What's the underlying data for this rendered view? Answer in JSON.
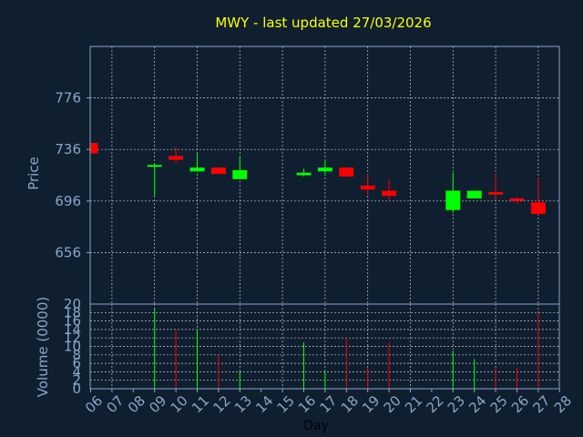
{
  "chart_data": {
    "type": "candlestick",
    "title": "MWY - last updated 27/03/2026",
    "xlabel": "Day",
    "price_panel": {
      "ylabel": "Price",
      "ylim": [
        616,
        816
      ],
      "ticks": [
        656,
        696,
        736,
        776
      ]
    },
    "volume_panel": {
      "ylabel": "Volume (0000)",
      "ylim": [
        0,
        20
      ],
      "ticks": [
        0,
        2,
        4,
        6,
        8,
        10,
        12,
        14,
        16,
        18,
        20
      ]
    },
    "x_tick_labels": [
      "06",
      "07",
      "08",
      "09",
      "10",
      "11",
      "12",
      "13",
      "14",
      "15",
      "16",
      "17",
      "18",
      "19",
      "20",
      "21",
      "22",
      "23",
      "24",
      "25",
      "26",
      "27",
      "28"
    ],
    "candles": [
      {
        "day": "06",
        "open": 741,
        "close": 733,
        "high": 741,
        "low": 733,
        "volume": 0,
        "direction": "down"
      },
      {
        "day": "09",
        "open": 723,
        "close": 724,
        "high": 725,
        "low": 700,
        "volume": 19,
        "direction": "up"
      },
      {
        "day": "10",
        "open": 731,
        "close": 728,
        "high": 738,
        "low": 726,
        "volume": 14,
        "direction": "down"
      },
      {
        "day": "11",
        "open": 719,
        "close": 722,
        "high": 733,
        "low": 719,
        "volume": 14,
        "direction": "up"
      },
      {
        "day": "12",
        "open": 722,
        "close": 717,
        "high": 722,
        "low": 717,
        "volume": 8,
        "direction": "down"
      },
      {
        "day": "13",
        "open": 713,
        "close": 720,
        "high": 730,
        "low": 713,
        "volume": 4,
        "direction": "up"
      },
      {
        "day": "16",
        "open": 716,
        "close": 718,
        "high": 721,
        "low": 715,
        "volume": 11,
        "direction": "up"
      },
      {
        "day": "17",
        "open": 719,
        "close": 722,
        "high": 728,
        "low": 717,
        "volume": 4,
        "direction": "up"
      },
      {
        "day": "18",
        "open": 722,
        "close": 715,
        "high": 722,
        "low": 715,
        "volume": 12,
        "direction": "down"
      },
      {
        "day": "19",
        "open": 708,
        "close": 705,
        "high": 717,
        "low": 701,
        "volume": 5,
        "direction": "down"
      },
      {
        "day": "20",
        "open": 704,
        "close": 700,
        "high": 713,
        "low": 697,
        "volume": 11,
        "direction": "down"
      },
      {
        "day": "23",
        "open": 689,
        "close": 704,
        "high": 718,
        "low": 687,
        "volume": 9,
        "direction": "up"
      },
      {
        "day": "24",
        "open": 698,
        "close": 704,
        "high": 704,
        "low": 698,
        "volume": 7,
        "direction": "up"
      },
      {
        "day": "25",
        "open": 703,
        "close": 701,
        "high": 717,
        "low": 697,
        "volume": 5,
        "direction": "down"
      },
      {
        "day": "26",
        "open": 698,
        "close": 696,
        "high": 699,
        "low": 694,
        "volume": 5,
        "direction": "down"
      },
      {
        "day": "27",
        "open": 695,
        "close": 686,
        "high": 714,
        "low": 685,
        "volume": 18,
        "direction": "down"
      }
    ],
    "colors": {
      "background": "#0f1f30",
      "axis_text": "#8aa6c8",
      "title": "#ffff00",
      "up": "#00ff00",
      "down": "#ff0000",
      "grid": "#c8c8c8",
      "frame": "#8aa6c8",
      "xlabel": "#000000"
    },
    "grid": true
  }
}
